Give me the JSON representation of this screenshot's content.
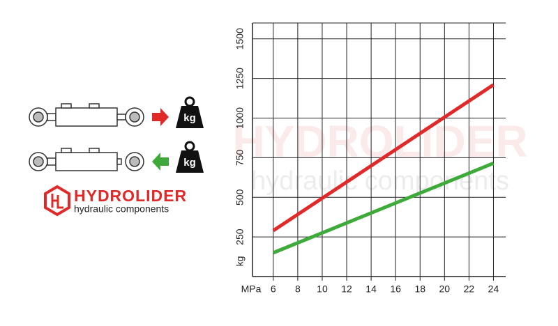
{
  "chart_data": {
    "type": "line",
    "x_label": "MPa",
    "y_label": "kg",
    "x": [
      6,
      24
    ],
    "series": [
      {
        "name": null,
        "color": "#e02a2a",
        "values": [
          290,
          1210
        ]
      },
      {
        "name": null,
        "color": "#3daa3a",
        "values": [
          150,
          715
        ]
      }
    ],
    "xlim": [
      4.3,
      25
    ],
    "xticks": [
      6,
      8,
      10,
      12,
      14,
      16,
      18,
      20,
      22,
      24
    ],
    "ylim": [
      0,
      1600
    ],
    "yticks": [
      250,
      500,
      750,
      1000,
      1250,
      1500
    ],
    "grid": true
  },
  "logo": {
    "name": "HYDROLIDER",
    "tagline": "hydraulic components"
  },
  "weight_label": "kg"
}
